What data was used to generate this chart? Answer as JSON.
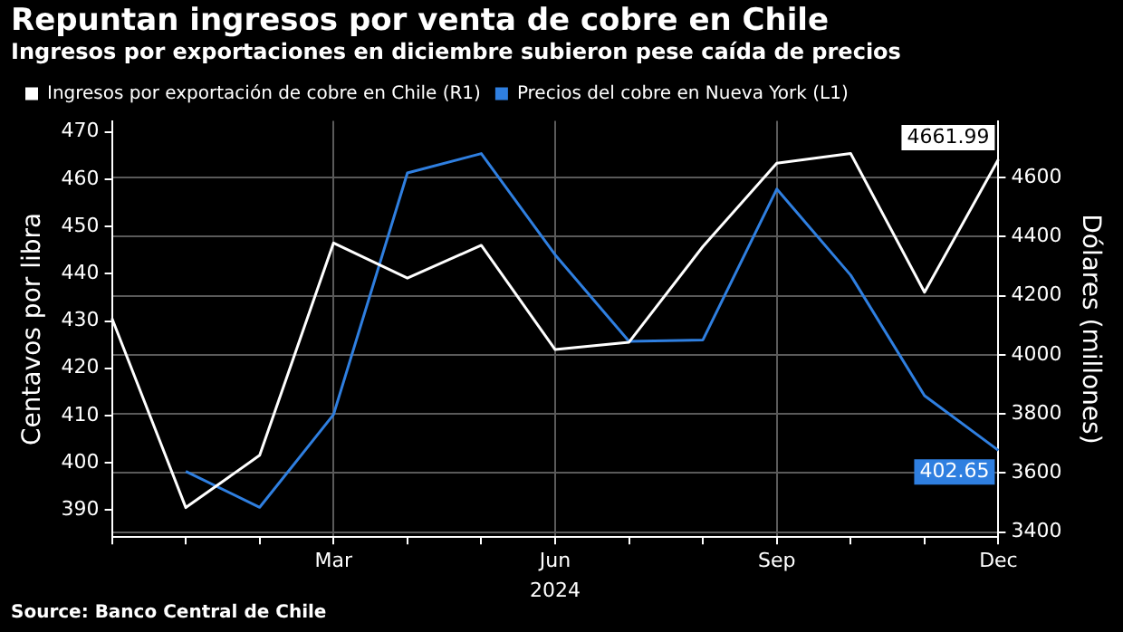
{
  "chart_data": {
    "type": "line",
    "title": "Repuntan ingresos por venta de cobre en Chile",
    "subtitle": "Ingresos por exportaciones en diciembre subieron pese caída de precios",
    "categories": [
      null,
      null,
      null,
      "Mar",
      null,
      null,
      "Jun",
      null,
      null,
      "Sep",
      null,
      null,
      "Dec"
    ],
    "xlabel": "2024",
    "ylabel": "Centavos por libra",
    "y2label": "Dólares (millones)",
    "series": [
      {
        "name": "Ingresos por exportación de cobre en Chile (R1)",
        "color": "#ffffff",
        "axis": "y2",
        "values": [
          4124,
          3483,
          3660,
          4379,
          4260,
          4371,
          4018,
          4043,
          4367,
          4649,
          4682,
          4212,
          4661.99
        ],
        "value_labels": [
          null,
          null,
          null,
          null,
          null,
          null,
          null,
          null,
          null,
          null,
          null,
          null,
          "4661.99"
        ]
      },
      {
        "name": "Precios del cobre en Nueva York (L1)",
        "color": "#2f7fe0",
        "axis": "y",
        "values": [
          null,
          398.2,
          390.6,
          410.2,
          461.3,
          465.4,
          444,
          425.7,
          426,
          457.9,
          439.7,
          414.2,
          402.65
        ],
        "value_labels": [
          null,
          null,
          null,
          null,
          null,
          null,
          null,
          null,
          null,
          null,
          null,
          null,
          "402.65"
        ]
      }
    ],
    "ylim": [
      384.3,
      472.3
    ],
    "yticks": [
      390,
      400,
      410,
      420,
      430,
      440,
      450,
      460,
      470
    ],
    "y2lim": [
      3383,
      4792
    ],
    "y2ticks": [
      3400,
      3600,
      3800,
      4000,
      4200,
      4400,
      4600
    ],
    "grid": true,
    "legend": "top left",
    "marker": "none",
    "line_style": "solid",
    "annotations": [
      "Source: Banco Central de Chile"
    ]
  }
}
